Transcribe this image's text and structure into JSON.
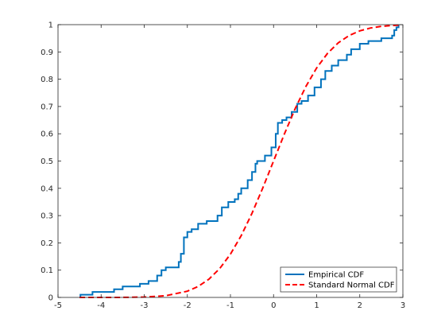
{
  "chart_data": {
    "type": "line",
    "title": "",
    "xlabel": "",
    "ylabel": "",
    "xlim": [
      -5,
      3
    ],
    "ylim": [
      0,
      1
    ],
    "x_ticks": [
      -5,
      -4,
      -3,
      -2,
      -1,
      0,
      1,
      2,
      3
    ],
    "y_ticks": [
      0,
      0.1,
      0.2,
      0.3,
      0.4,
      0.5,
      0.6,
      0.7,
      0.8,
      0.9,
      1
    ],
    "grid": false,
    "legend_position": "bottom-right",
    "series": [
      {
        "name": "Empirical CDF",
        "style": "solid-stairs",
        "color": "#0072BD",
        "x": [
          -4.5,
          -4.48,
          -4.2,
          -3.7,
          -3.5,
          -3.1,
          -2.9,
          -2.7,
          -2.6,
          -2.5,
          -2.2,
          -2.15,
          -2.08,
          -2.0,
          -1.9,
          -1.75,
          -1.55,
          -1.3,
          -1.2,
          -1.05,
          -0.9,
          -0.82,
          -0.75,
          -0.6,
          -0.5,
          -0.42,
          -0.38,
          -0.2,
          -0.05,
          0.05,
          0.1,
          0.2,
          0.3,
          0.42,
          0.55,
          0.65,
          0.8,
          0.95,
          1.1,
          1.2,
          1.35,
          1.5,
          1.7,
          1.8,
          2.0,
          2.2,
          2.5,
          2.75,
          2.8,
          2.85,
          2.9
        ],
        "y": [
          0.0,
          0.01,
          0.02,
          0.03,
          0.04,
          0.05,
          0.06,
          0.08,
          0.1,
          0.11,
          0.13,
          0.16,
          0.22,
          0.24,
          0.25,
          0.27,
          0.28,
          0.3,
          0.33,
          0.35,
          0.36,
          0.38,
          0.4,
          0.43,
          0.46,
          0.49,
          0.5,
          0.52,
          0.55,
          0.6,
          0.64,
          0.65,
          0.66,
          0.68,
          0.71,
          0.72,
          0.74,
          0.77,
          0.8,
          0.83,
          0.85,
          0.87,
          0.89,
          0.91,
          0.93,
          0.94,
          0.95,
          0.96,
          0.98,
          0.99,
          1.0
        ]
      },
      {
        "name": "Standard Normal CDF",
        "style": "dashed",
        "color": "#FF0000",
        "x": [
          -4.5,
          -4.0,
          -3.5,
          -3.0,
          -2.5,
          -2.0,
          -1.75,
          -1.5,
          -1.25,
          -1.0,
          -0.75,
          -0.5,
          -0.25,
          0.0,
          0.25,
          0.5,
          0.75,
          1.0,
          1.25,
          1.5,
          1.75,
          2.0,
          2.25,
          2.5,
          2.75,
          2.9
        ],
        "y": [
          0.0,
          0.0,
          0.0002,
          0.0013,
          0.0062,
          0.0228,
          0.0401,
          0.0668,
          0.1056,
          0.1587,
          0.2266,
          0.3085,
          0.4013,
          0.5,
          0.5987,
          0.6915,
          0.7734,
          0.8413,
          0.8944,
          0.9332,
          0.9599,
          0.9772,
          0.9878,
          0.9938,
          0.997,
          0.9981
        ]
      }
    ]
  },
  "colors": {
    "axis": "#262626",
    "empirical": "#0072BD",
    "normal": "#FF0000"
  }
}
